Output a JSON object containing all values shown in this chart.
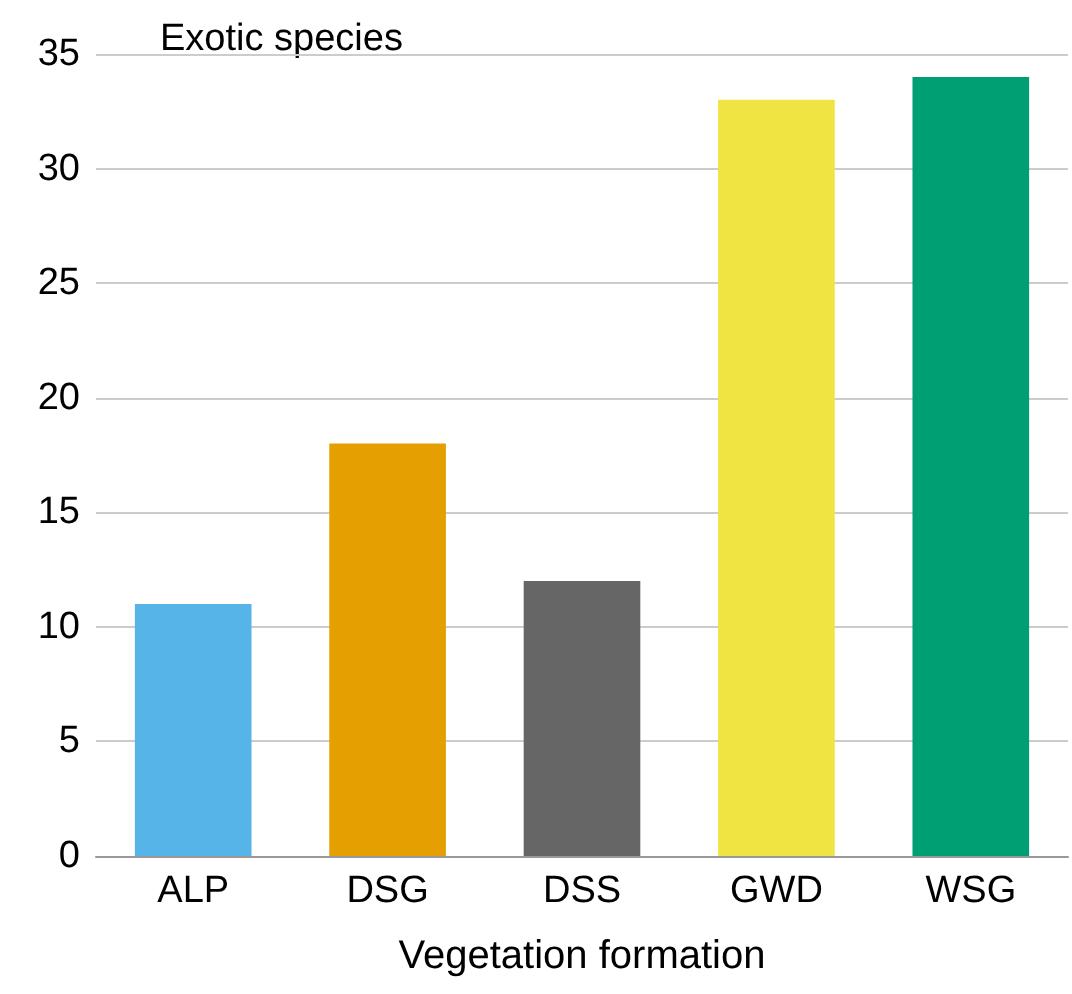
{
  "chart_data": {
    "type": "bar",
    "xlabel": "Vegetation formation",
    "categories": [
      "ALP",
      "DSG",
      "DSS",
      "GWD",
      "WSG"
    ],
    "values": [
      11,
      18,
      12,
      33,
      34
    ],
    "colors": [
      "#56b4e9",
      "#e69f00",
      "#666666",
      "#f0e442",
      "#009e73"
    ],
    "ylim": [
      0,
      35
    ],
    "yticks": [
      0,
      5,
      10,
      15,
      20,
      25,
      30,
      35
    ],
    "grid": "y",
    "annotations": [
      "Exotic species"
    ]
  }
}
